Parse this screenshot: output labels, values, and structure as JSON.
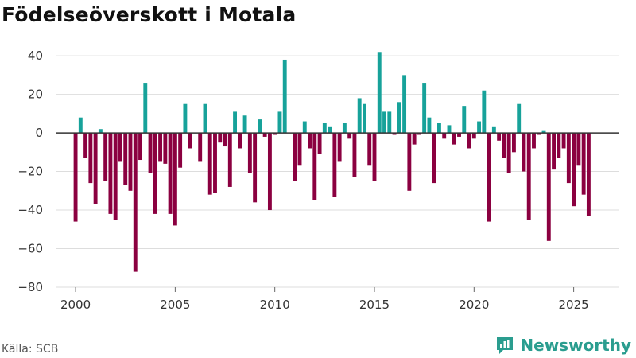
{
  "title": "Födelseöverskott i Motala",
  "source": "Källa: SCB",
  "brand": {
    "name": "Newsworthy",
    "icon": "newsworthy-logo-icon"
  },
  "colors": {
    "positive": "#17a29a",
    "negative": "#8b0040",
    "grid": "#dddddd",
    "zero": "#333333",
    "brand": "#2a9d8f"
  },
  "chart_data": {
    "type": "bar",
    "title": "Födelseöverskott i Motala",
    "xlabel": "",
    "ylabel": "",
    "ylim": [
      -80,
      45
    ],
    "xlim": [
      1999.0,
      2027.25
    ],
    "yticks": [
      -80,
      -60,
      -40,
      -20,
      0,
      20,
      40
    ],
    "xticks": [
      2000,
      2005,
      2010,
      2015,
      2020,
      2025
    ],
    "grid": true,
    "frequency": "quarterly",
    "start": "2000 Q1",
    "values": [
      -46,
      8,
      -13,
      -26,
      -37,
      2,
      -25,
      -42,
      -45,
      -15,
      -27,
      -30,
      -72,
      -14,
      26,
      -21,
      -42,
      -15,
      -16,
      -42,
      -48,
      -18,
      15,
      -8,
      0,
      -15,
      15,
      -32,
      -31,
      -5,
      -7,
      -28,
      11,
      -8,
      9,
      -21,
      -36,
      7,
      -2,
      -40,
      -1,
      11,
      38,
      0,
      -25,
      -17,
      6,
      -8,
      -35,
      -11,
      5,
      3,
      -33,
      -15,
      5,
      -3,
      -23,
      18,
      15,
      -17,
      -25,
      42,
      11,
      11,
      -1,
      16,
      30,
      -30,
      -6,
      -1,
      26,
      8,
      -26,
      5,
      -3,
      4,
      -6,
      -2,
      14,
      -8,
      -3,
      6,
      22,
      -46,
      3,
      -4,
      -13,
      -21,
      -10,
      15,
      -20,
      -45,
      -8,
      -1,
      1,
      -56,
      -19,
      -13,
      -8,
      -26,
      -38,
      -17,
      -32,
      -43
    ]
  }
}
